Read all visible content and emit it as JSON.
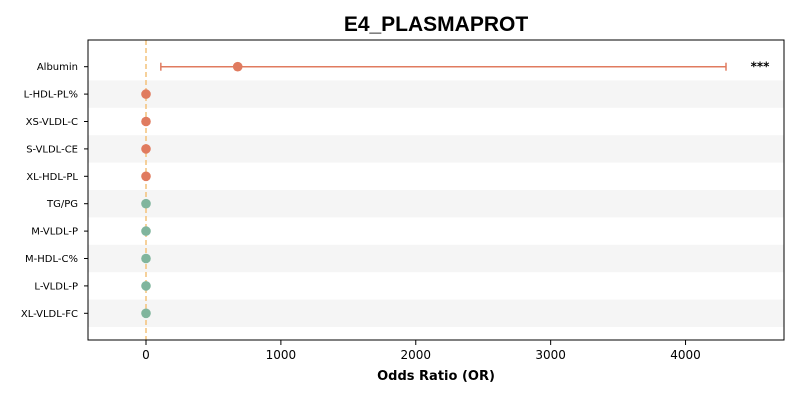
{
  "chart_data": {
    "type": "forest",
    "title": "E4_PLASMAPROT",
    "xlabel": "Odds Ratio (OR)",
    "xlim": [
      -430,
      4730
    ],
    "xticks": [
      0,
      1000,
      2000,
      3000,
      4000
    ],
    "reference_line": 0,
    "colors": {
      "risk": "#e07b5f",
      "protective": "#80b59d",
      "reference_line": "#f3c27a",
      "band": "#f5f5f5",
      "axis": "#000000"
    },
    "rows": [
      {
        "label": "Albumin",
        "or": 680,
        "ci_low": 110,
        "ci_high": 4300,
        "group": "risk",
        "sig": "***"
      },
      {
        "label": "L-HDL-PL%",
        "or": 0,
        "group": "risk",
        "sig": ""
      },
      {
        "label": "XS-VLDL-C",
        "or": 0,
        "group": "risk",
        "sig": ""
      },
      {
        "label": "S-VLDL-CE",
        "or": 0,
        "group": "risk",
        "sig": ""
      },
      {
        "label": "XL-HDL-PL",
        "or": 0,
        "group": "risk",
        "sig": ""
      },
      {
        "label": "TG/PG",
        "or": 0,
        "group": "protective",
        "sig": ""
      },
      {
        "label": "M-VLDL-P",
        "or": 0,
        "group": "protective",
        "sig": ""
      },
      {
        "label": "M-HDL-C%",
        "or": 0,
        "group": "protective",
        "sig": ""
      },
      {
        "label": "L-VLDL-P",
        "or": 0,
        "group": "protective",
        "sig": ""
      },
      {
        "label": "XL-VLDL-FC",
        "or": 0,
        "group": "protective",
        "sig": ""
      }
    ]
  }
}
